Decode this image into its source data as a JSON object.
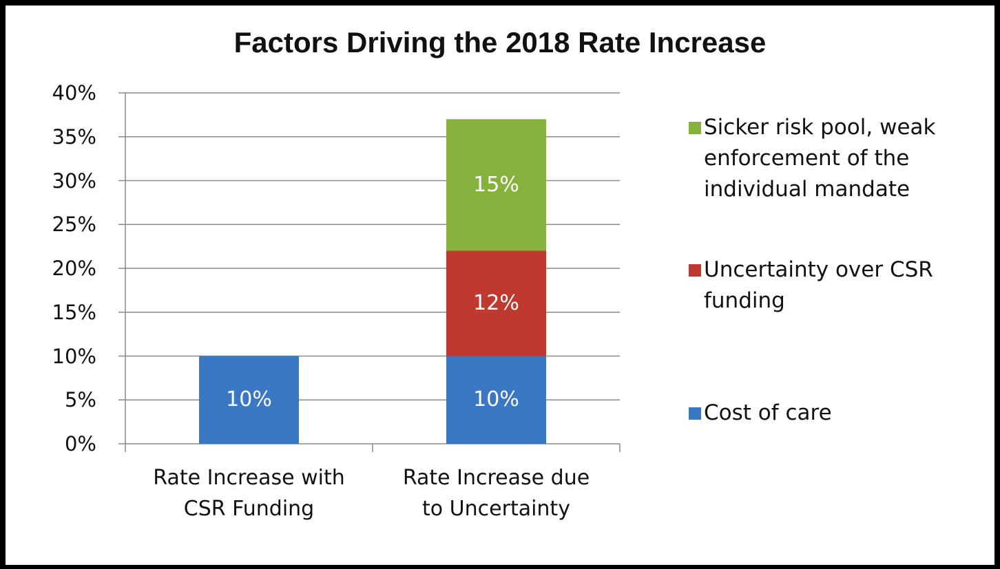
{
  "chart_data": {
    "type": "stacked_bar",
    "title": "Factors Driving the 2018 Rate Increase",
    "categories": [
      "Rate Increase with CSR Funding",
      "Rate Increase due to Uncertainty"
    ],
    "series": [
      {
        "name": "Cost of care",
        "color": "#3b78c4",
        "values": [
          10,
          10
        ],
        "value_labels": [
          "10%",
          "10%"
        ]
      },
      {
        "name": "Uncertainty over CSR funding",
        "color": "#c0392f",
        "values": [
          null,
          12
        ],
        "value_labels": [
          null,
          "12%"
        ]
      },
      {
        "name": "Sicker risk pool, weak enforcement of the individual mandate",
        "color": "#86b13c",
        "values": [
          null,
          15
        ],
        "value_labels": [
          null,
          "15%"
        ]
      }
    ],
    "ylim": [
      0,
      40
    ],
    "yticks": [
      {
        "value": 0,
        "label": "0%"
      },
      {
        "value": 5,
        "label": "5%"
      },
      {
        "value": 10,
        "label": "10%"
      },
      {
        "value": 15,
        "label": "15%"
      },
      {
        "value": 20,
        "label": "20%"
      },
      {
        "value": 25,
        "label": "25%"
      },
      {
        "value": 30,
        "label": "30%"
      },
      {
        "value": 35,
        "label": "35%"
      },
      {
        "value": 40,
        "label": "40%"
      }
    ],
    "grid": true,
    "legend": "right"
  }
}
